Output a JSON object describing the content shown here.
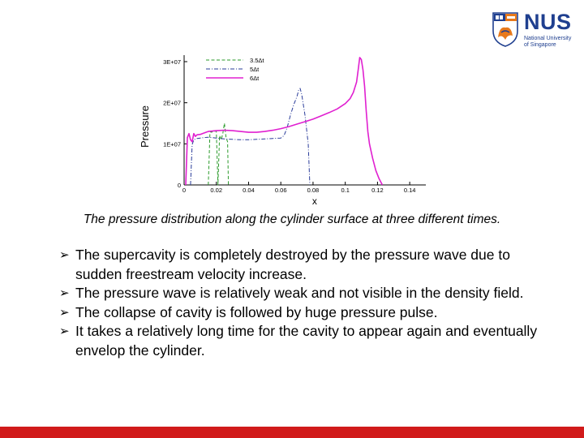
{
  "logo": {
    "icon": "nus-crest-icon",
    "name": "NUS",
    "sub_line1": "National University",
    "sub_line2": "of Singapore"
  },
  "colors": {
    "series_1": "#2a9a2a",
    "series_2": "#2a3c9a",
    "series_3": "#e020d0",
    "bottom_bar": "#d11a1a",
    "logo_blue": "#1f3f8f",
    "logo_orange": "#e8791b"
  },
  "chart_data": {
    "type": "line",
    "title": "",
    "xlabel": "x",
    "ylabel": "Pressure",
    "xlim": [
      0,
      0.15
    ],
    "ylim": [
      0,
      30000000
    ],
    "x_ticks": [
      "0",
      "0.02",
      "0.04",
      "0.06",
      "0.08",
      "0.1",
      "0.12",
      "0.14"
    ],
    "x_tick_values": [
      0,
      0.02,
      0.04,
      0.06,
      0.08,
      0.1,
      0.12,
      0.14
    ],
    "y_ticks": [
      "0",
      "1E+07",
      "2E+07",
      "3E+07"
    ],
    "y_tick_values": [
      0,
      10000000,
      20000000,
      30000000
    ],
    "legend_position": "top-right",
    "grid": false,
    "series": [
      {
        "name": "3.5Δt",
        "style": "dashed",
        "x": [
          0.015,
          0.016,
          0.0165,
          0.017,
          0.018,
          0.02,
          0.021,
          0.022,
          0.023,
          0.024,
          0.025,
          0.026,
          0.027,
          0.0275
        ],
        "y": [
          0,
          12500000,
          13000000,
          12800000,
          13000000,
          13100000,
          0,
          12000000,
          11000000,
          12500000,
          15000000,
          11500000,
          10500000,
          0
        ]
      },
      {
        "name": "5Δt",
        "style": "dash-dot",
        "x": [
          0.004,
          0.005,
          0.006,
          0.008,
          0.01,
          0.012,
          0.015,
          0.02,
          0.025,
          0.03,
          0.035,
          0.04,
          0.045,
          0.05,
          0.055,
          0.06,
          0.062,
          0.064,
          0.066,
          0.068,
          0.07,
          0.071,
          0.072,
          0.073,
          0.075,
          0.077,
          0.078
        ],
        "y": [
          0,
          9800000,
          11000000,
          11300000,
          11400000,
          11500000,
          11600000,
          11400000,
          11200000,
          11100000,
          11000000,
          11000000,
          11100000,
          11200000,
          11300000,
          11400000,
          12000000,
          14000000,
          17000000,
          19500000,
          21500000,
          23000000,
          23500000,
          22000000,
          17000000,
          10000000,
          0
        ]
      },
      {
        "name": "6Δt",
        "style": "solid",
        "x": [
          0.001,
          0.002,
          0.003,
          0.004,
          0.005,
          0.006,
          0.007,
          0.008,
          0.01,
          0.012,
          0.015,
          0.02,
          0.025,
          0.03,
          0.035,
          0.04,
          0.045,
          0.05,
          0.055,
          0.06,
          0.065,
          0.07,
          0.075,
          0.08,
          0.085,
          0.09,
          0.095,
          0.1,
          0.103,
          0.105,
          0.107,
          0.108,
          0.109,
          0.11,
          0.111,
          0.112,
          0.113,
          0.114,
          0.115,
          0.117,
          0.119,
          0.121,
          0.123
        ],
        "y": [
          0,
          11500000,
          12500000,
          11000000,
          10500000,
          12500000,
          11800000,
          12200000,
          12300000,
          12600000,
          13000000,
          13200000,
          13300000,
          13200000,
          13000000,
          12800000,
          12800000,
          13000000,
          13300000,
          13700000,
          14200000,
          14800000,
          15400000,
          16000000,
          16800000,
          17600000,
          18500000,
          19800000,
          21000000,
          22500000,
          25000000,
          28000000,
          31000000,
          30500000,
          28000000,
          24000000,
          18000000,
          13000000,
          10000000,
          6500000,
          3500000,
          1500000,
          0
        ]
      }
    ]
  },
  "caption": "The pressure distribution along the cylinder surface at three different times.",
  "bullet_icon": "arrow-bullet-icon",
  "bullet_glyph": "➢",
  "bullets": [
    "The supercavity is completely destroyed by the pressure wave due to sudden freestream velocity increase.",
    "The pressure wave is relatively weak and not visible in the density field.",
    "The collapse of cavity is followed by huge pressure pulse.",
    "It takes a relatively long time for the cavity to appear again and eventually envelop the cylinder."
  ]
}
